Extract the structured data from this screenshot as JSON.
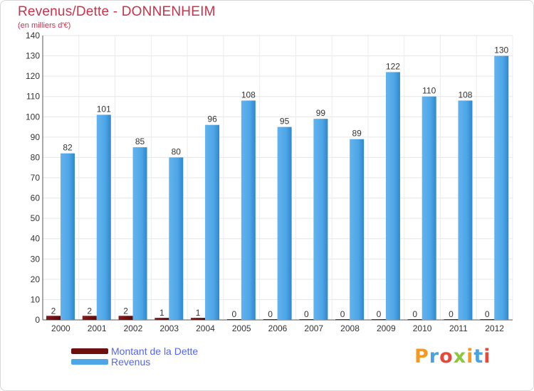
{
  "header": {
    "title": "Revenus/Dette - DONNENHEIM",
    "subtitle": "(en milliers d'€)"
  },
  "brand": {
    "text": "Proxiti",
    "colors": [
      "#f59a1e",
      "#4aa3de",
      "#e8483a",
      "#8dc63f",
      "#f59a1e",
      "#4aa3de",
      "#e8483a"
    ]
  },
  "chart_data": {
    "type": "bar",
    "title": "Revenus/Dette - DONNENHEIM",
    "subtitle": "(en milliers d'€)",
    "categories": [
      "2000",
      "2001",
      "2002",
      "2003",
      "2004",
      "2005",
      "2006",
      "2007",
      "2008",
      "2009",
      "2010",
      "2011",
      "2012"
    ],
    "ylim": [
      0,
      140
    ],
    "yticks": [
      0,
      10,
      20,
      30,
      40,
      50,
      60,
      70,
      80,
      90,
      100,
      110,
      120,
      130,
      140
    ],
    "grid": true,
    "legend_position": "bottom-left",
    "series": [
      {
        "name": "Montant de la Dette",
        "color": "#6b0f0f",
        "values": [
          2,
          2,
          2,
          1,
          1,
          0,
          0,
          0,
          0,
          0,
          0,
          0,
          0
        ]
      },
      {
        "name": "Revenus",
        "color": "#4ea6e6",
        "values": [
          82,
          101,
          85,
          80,
          96,
          108,
          95,
          99,
          89,
          122,
          110,
          108,
          130
        ]
      }
    ]
  }
}
